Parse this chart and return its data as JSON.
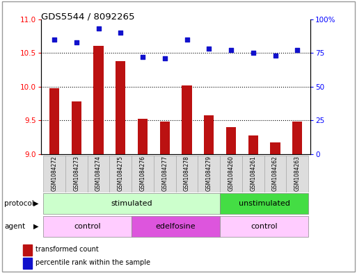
{
  "title": "GDS5544 / 8092265",
  "samples": [
    "GSM1084272",
    "GSM1084273",
    "GSM1084274",
    "GSM1084275",
    "GSM1084276",
    "GSM1084277",
    "GSM1084278",
    "GSM1084279",
    "GSM1084260",
    "GSM1084261",
    "GSM1084262",
    "GSM1084263"
  ],
  "transformed_count": [
    9.98,
    9.78,
    10.6,
    10.38,
    9.52,
    9.48,
    10.02,
    9.58,
    9.4,
    9.28,
    9.18,
    9.48
  ],
  "percentile_rank": [
    85,
    83,
    93,
    90,
    72,
    71,
    85,
    78,
    77,
    75,
    73,
    77
  ],
  "ylim_left": [
    9,
    11
  ],
  "ylim_right": [
    0,
    100
  ],
  "yticks_left": [
    9,
    9.5,
    10,
    10.5,
    11
  ],
  "yticks_right": [
    0,
    25,
    50,
    75,
    100
  ],
  "yticklabels_right": [
    "0",
    "25",
    "50",
    "75",
    "100%"
  ],
  "bar_color": "#bb1111",
  "scatter_color": "#1111cc",
  "protocol_groups": [
    {
      "label": "stimulated",
      "start": 0,
      "end": 8,
      "color": "#ccffcc"
    },
    {
      "label": "unstimulated",
      "start": 8,
      "end": 12,
      "color": "#44dd44"
    }
  ],
  "agent_groups": [
    {
      "label": "control",
      "start": 0,
      "end": 4,
      "color": "#ffccff"
    },
    {
      "label": "edelfosine",
      "start": 4,
      "end": 8,
      "color": "#dd55dd"
    },
    {
      "label": "control",
      "start": 8,
      "end": 12,
      "color": "#ffccff"
    }
  ],
  "legend_items": [
    {
      "label": "transformed count",
      "color": "#bb1111"
    },
    {
      "label": "percentile rank within the sample",
      "color": "#1111cc"
    }
  ],
  "label_area_color": "#dddddd",
  "outer_border_color": "#888888"
}
